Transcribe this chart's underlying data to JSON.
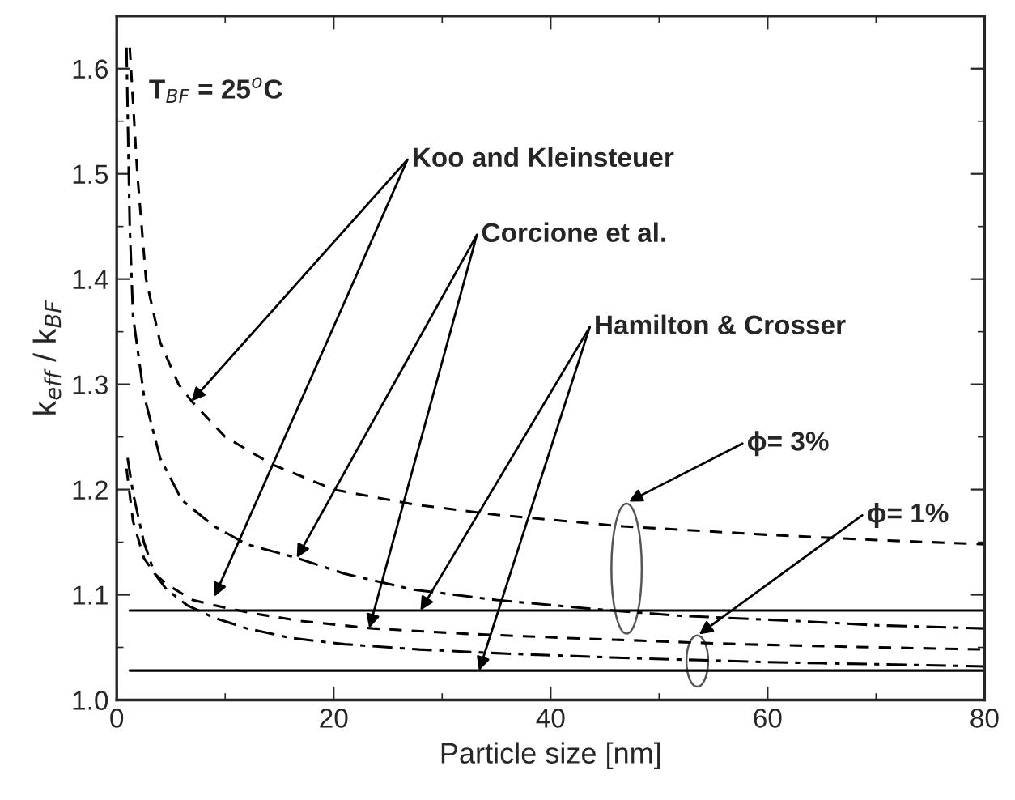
{
  "chart_data": {
    "type": "line",
    "xlabel": "Particle size [nm]",
    "ylabel": "k$_{eff}$ / k$_{BF}$",
    "xlim": [
      0,
      80
    ],
    "ylim": [
      1.0,
      1.65
    ],
    "xticks": [
      0,
      20,
      40,
      60,
      80
    ],
    "yticks": [
      {
        "value": 1.0,
        "label": "1.0"
      },
      {
        "value": 1.1,
        "label": "1.1"
      },
      {
        "value": 1.2,
        "label": "1.2"
      },
      {
        "value": 1.3,
        "label": "1.3"
      },
      {
        "value": 1.4,
        "label": "1.4"
      },
      {
        "value": 1.5,
        "label": "1.5"
      },
      {
        "value": 1.6,
        "label": "1.6"
      }
    ],
    "grid": false,
    "series": [
      {
        "color": "#000000",
        "line_style": "dashed",
        "x": [
          1.2,
          1.9,
          2.7,
          4.0,
          5.7,
          6.9,
          10,
          14.3,
          20,
          27.3,
          35,
          46.7,
          60,
          70,
          80
        ],
        "values": [
          1.62,
          1.5,
          1.4,
          1.34,
          1.3,
          1.284,
          1.25,
          1.224,
          1.2,
          1.186,
          1.176,
          1.165,
          1.157,
          1.152,
          1.148
        ]
      },
      {
        "color": "#000000",
        "line_style": "dashdot",
        "x": [
          0.9,
          1.2,
          1.5,
          2.5,
          4.0,
          6.0,
          9,
          12,
          16.6,
          21,
          27.3,
          35,
          44.5,
          52,
          62.8,
          70,
          80
        ],
        "values": [
          1.62,
          1.45,
          1.365,
          1.29,
          1.23,
          1.19,
          1.165,
          1.148,
          1.135,
          1.12,
          1.105,
          1.095,
          1.086,
          1.08,
          1.075,
          1.071,
          1.068
        ]
      },
      {
        "color": "#000000",
        "line_style": "dashed",
        "x": [
          0.9,
          1.5,
          2.5,
          3.5,
          4.6,
          7,
          9,
          12.2,
          17,
          23.6,
          32,
          41.3,
          57.5,
          70,
          80
        ],
        "values": [
          1.22,
          1.17,
          1.135,
          1.12,
          1.11,
          1.095,
          1.09,
          1.083,
          1.075,
          1.068,
          1.063,
          1.059,
          1.053,
          1.05,
          1.048
        ]
      },
      {
        "color": "#000000",
        "line_style": "dashdot",
        "x": [
          1.0,
          1.5,
          2.5,
          3.5,
          4.6,
          6.5,
          9,
          12,
          16,
          21,
          27.9,
          36,
          46.7,
          60,
          70,
          80
        ],
        "values": [
          1.23,
          1.197,
          1.15,
          1.12,
          1.105,
          1.09,
          1.078,
          1.068,
          1.059,
          1.053,
          1.048,
          1.044,
          1.04,
          1.036,
          1.034,
          1.032
        ]
      },
      {
        "color": "#000000",
        "line_style": "solid",
        "x": [
          1.2,
          80
        ],
        "values": [
          1.085,
          1.085
        ]
      },
      {
        "color": "#000000",
        "line_style": "solid",
        "x": [
          1.2,
          80
        ],
        "values": [
          1.028,
          1.028
        ]
      }
    ],
    "annotations": [
      "T$_{BF}$ = 25$^{o}$C",
      {
        "text": "Koo and Kleinsteuer",
        "x": 6.9,
        "y": 1.284
      },
      {
        "text": "Corcione et al.",
        "x": 16.6,
        "y": 1.135
      },
      {
        "text": "Hamilton & Crosser",
        "x": 28,
        "y": 1.085
      },
      "ϕ= 3%",
      "ϕ= 1%"
    ]
  }
}
